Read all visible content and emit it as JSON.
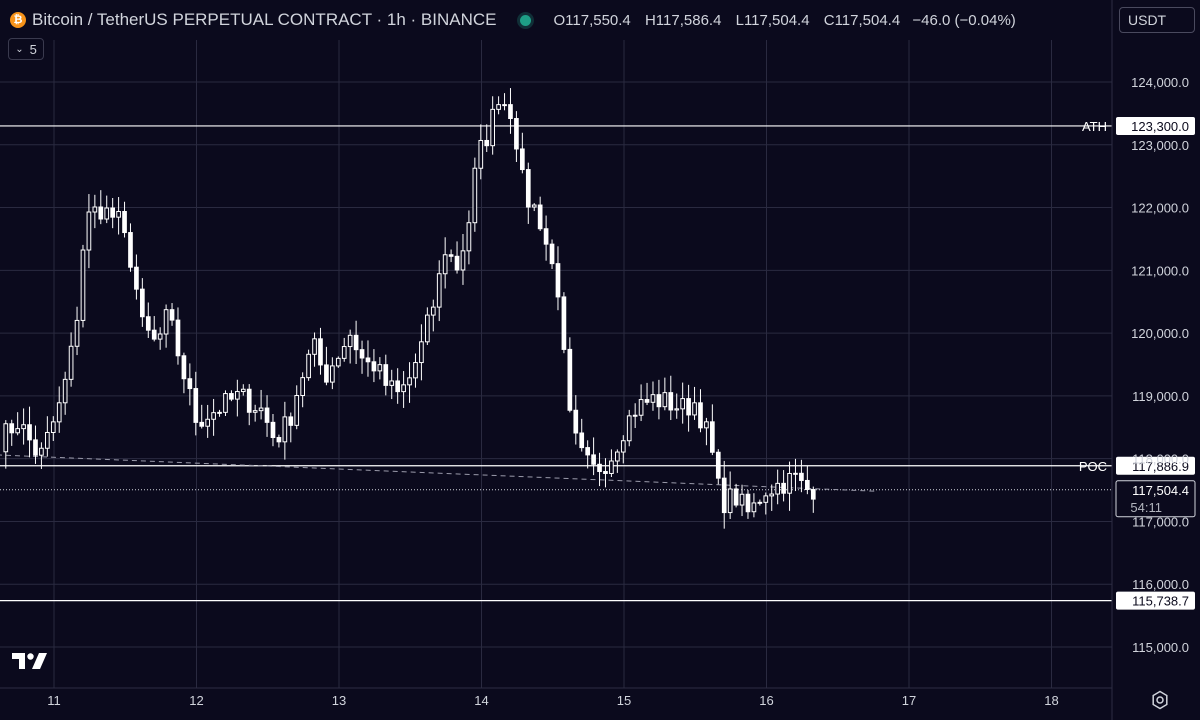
{
  "header": {
    "symbol_title": "Bitcoin / TetherUS PERPETUAL CONTRACT · 1h · BINANCE",
    "coin_icon": "bitcoin-icon",
    "ohlc": {
      "o_label": "O",
      "o": "117,550.4",
      "h_label": "H",
      "h": "117,586.4",
      "l_label": "L",
      "l": "117,504.4",
      "c_label": "C",
      "c": "117,504.4",
      "change": "−46.0 (−0.04%)"
    },
    "collapse_count": "5",
    "currency": "USDT"
  },
  "colors": {
    "background": "#0b0a1d",
    "grid": "#2a2a40",
    "candle": "#ffffff",
    "text": "#d1d4dc",
    "live_dot": "#1e9e86"
  },
  "chart_data": {
    "type": "candlestick",
    "timeframe": "1h",
    "y_range": [
      114500,
      124800
    ],
    "y_ticks": [
      "124,000.0",
      "123,000.0",
      "122,000.0",
      "121,000.0",
      "120,000.0",
      "119,000.0",
      "118,000.0",
      "117,000.0",
      "116,000.0",
      "115,000.0"
    ],
    "y_tick_values": [
      124000,
      123000,
      122000,
      121000,
      120000,
      119000,
      118000,
      117000,
      116000,
      115000
    ],
    "x_ticks": [
      "11",
      "12",
      "13",
      "14",
      "15",
      "16",
      "17",
      "18"
    ],
    "x_tick_days": [
      11,
      12,
      13,
      14,
      15,
      16,
      17,
      18
    ],
    "x_range_days": [
      10.62,
      18.4
    ],
    "levels": [
      {
        "label": "ATH",
        "value": 123300,
        "price_text": "123,300.0"
      },
      {
        "label": "POC",
        "value": 117886.9,
        "price_text": "117,886.9"
      },
      {
        "label": "",
        "value": 115738.7,
        "price_text": "115,738.7"
      }
    ],
    "last_price": {
      "value": 117504.4,
      "price_text": "117,504.4",
      "countdown": "54:11"
    },
    "trendline": {
      "start_day": 10.6,
      "start_value": 118060,
      "end_day": 16.78,
      "end_value": 117480
    },
    "key_points": [
      {
        "day": 10.62,
        "value": 118300
      },
      {
        "day": 10.75,
        "value": 118600
      },
      {
        "day": 10.9,
        "value": 118000
      },
      {
        "day": 11.05,
        "value": 118900
      },
      {
        "day": 11.15,
        "value": 120000
      },
      {
        "day": 11.22,
        "value": 121800
      },
      {
        "day": 11.32,
        "value": 122000
      },
      {
        "day": 11.45,
        "value": 121800
      },
      {
        "day": 11.55,
        "value": 121100
      },
      {
        "day": 11.62,
        "value": 120100
      },
      {
        "day": 11.72,
        "value": 119800
      },
      {
        "day": 11.8,
        "value": 120300
      },
      {
        "day": 11.88,
        "value": 119600
      },
      {
        "day": 12.0,
        "value": 118600
      },
      {
        "day": 12.15,
        "value": 118800
      },
      {
        "day": 12.3,
        "value": 119000
      },
      {
        "day": 12.45,
        "value": 118800
      },
      {
        "day": 12.55,
        "value": 118300
      },
      {
        "day": 12.65,
        "value": 118600
      },
      {
        "day": 12.72,
        "value": 119200
      },
      {
        "day": 12.82,
        "value": 119800
      },
      {
        "day": 12.9,
        "value": 119300
      },
      {
        "day": 13.0,
        "value": 119700
      },
      {
        "day": 13.08,
        "value": 120000
      },
      {
        "day": 13.18,
        "value": 119500
      },
      {
        "day": 13.25,
        "value": 119500
      },
      {
        "day": 13.32,
        "value": 119200
      },
      {
        "day": 13.42,
        "value": 119000
      },
      {
        "day": 13.5,
        "value": 119300
      },
      {
        "day": 13.58,
        "value": 119800
      },
      {
        "day": 13.68,
        "value": 120600
      },
      {
        "day": 13.75,
        "value": 121400
      },
      {
        "day": 13.82,
        "value": 121000
      },
      {
        "day": 13.9,
        "value": 121600
      },
      {
        "day": 13.97,
        "value": 122800
      },
      {
        "day": 14.05,
        "value": 123200
      },
      {
        "day": 14.12,
        "value": 123800
      },
      {
        "day": 14.22,
        "value": 123500
      },
      {
        "day": 14.3,
        "value": 122200
      },
      {
        "day": 14.4,
        "value": 121900
      },
      {
        "day": 14.48,
        "value": 121200
      },
      {
        "day": 14.55,
        "value": 120600
      },
      {
        "day": 14.6,
        "value": 118800
      },
      {
        "day": 14.68,
        "value": 118100
      },
      {
        "day": 14.78,
        "value": 117800
      },
      {
        "day": 14.9,
        "value": 118000
      },
      {
        "day": 15.0,
        "value": 118500
      },
      {
        "day": 15.08,
        "value": 118800
      },
      {
        "day": 15.2,
        "value": 118950
      },
      {
        "day": 15.3,
        "value": 118900
      },
      {
        "day": 15.42,
        "value": 118800
      },
      {
        "day": 15.5,
        "value": 118900
      },
      {
        "day": 15.6,
        "value": 118300
      },
      {
        "day": 15.68,
        "value": 117300
      },
      {
        "day": 15.78,
        "value": 117400
      },
      {
        "day": 15.88,
        "value": 117100
      },
      {
        "day": 15.98,
        "value": 117500
      },
      {
        "day": 16.1,
        "value": 117600
      },
      {
        "day": 16.2,
        "value": 117700
      },
      {
        "day": 16.27,
        "value": 117500
      },
      {
        "day": 16.34,
        "value": 117540
      }
    ]
  }
}
